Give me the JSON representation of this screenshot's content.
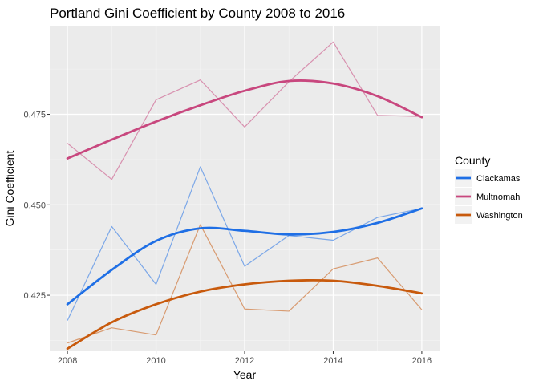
{
  "chart_data": {
    "type": "line",
    "title": "Portland Gini Coefficient by County 2008 to 2016",
    "xlabel": "Year",
    "ylabel": "Gini Coefficient",
    "xlim": [
      2007.6,
      2016.4
    ],
    "ylim": [
      0.4095,
      0.4995
    ],
    "x_ticks": [
      2008,
      2010,
      2012,
      2014,
      2016
    ],
    "x_tick_labels": [
      "2008",
      "2010",
      "2012",
      "2014",
      "2016"
    ],
    "y_ticks": [
      0.425,
      0.45,
      0.475
    ],
    "y_tick_labels": [
      "0.425",
      "0.450",
      "0.475"
    ],
    "grid": true,
    "legend": {
      "title": "County",
      "position": "right"
    },
    "x": [
      2008,
      2009,
      2010,
      2011,
      2012,
      2013,
      2014,
      2015,
      2016
    ],
    "series": [
      {
        "name": "Clackamas",
        "color": "#1f6fe5",
        "values": [
          0.418,
          0.444,
          0.428,
          0.4605,
          0.433,
          0.4415,
          0.4402,
          0.4465,
          0.449
        ],
        "smooth": [
          0.4225,
          0.432,
          0.44,
          0.4435,
          0.4428,
          0.4418,
          0.4425,
          0.445,
          0.449
        ]
      },
      {
        "name": "Multnomah",
        "color": "#c8477e",
        "values": [
          0.467,
          0.457,
          0.479,
          0.4845,
          0.4715,
          0.484,
          0.495,
          0.4747,
          0.4744
        ],
        "smooth": [
          0.4628,
          0.468,
          0.473,
          0.4775,
          0.4815,
          0.4842,
          0.4835,
          0.48,
          0.4742
        ]
      },
      {
        "name": "Washington",
        "color": "#c85a0d",
        "values": [
          0.4118,
          0.416,
          0.414,
          0.4445,
          0.4212,
          0.4206,
          0.4323,
          0.4353,
          0.421
        ],
        "smooth": [
          0.4102,
          0.4175,
          0.4225,
          0.426,
          0.428,
          0.429,
          0.429,
          0.4276,
          0.4255
        ]
      }
    ]
  }
}
